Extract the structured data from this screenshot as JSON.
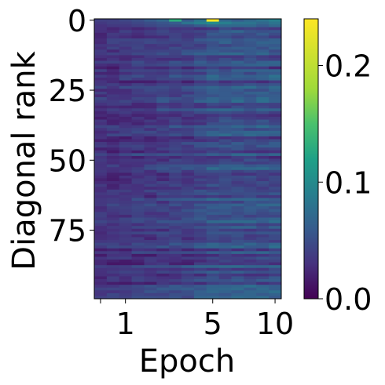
{
  "chart_data": {
    "type": "heatmap",
    "title": "",
    "xlabel": "Epoch",
    "ylabel": "Diagonal rank",
    "x_ticks": [
      {
        "value": 0,
        "label": ""
      },
      {
        "value": 1,
        "label": "1"
      },
      {
        "value": 5,
        "label": "5"
      },
      {
        "value": 10,
        "label": "10"
      }
    ],
    "y_ticks": [
      {
        "value": 0,
        "label": "0"
      },
      {
        "value": 25,
        "label": "25"
      },
      {
        "value": 50,
        "label": "50"
      },
      {
        "value": 75,
        "label": "75"
      }
    ],
    "y_range": [
      0,
      99
    ],
    "colorbar": {
      "range": [
        0,
        0.24
      ],
      "ticks": [
        {
          "value": 0,
          "label": "0.0"
        },
        {
          "value": 0.1,
          "label": "0.1"
        },
        {
          "value": 0.2,
          "label": "0.2"
        }
      ],
      "colormap": "viridis"
    },
    "columns": [
      {
        "epoch": 0.0,
        "mean": 0.03,
        "top": [
          0.04,
          0.035,
          0.03
        ]
      },
      {
        "epoch": 0.5,
        "mean": 0.03,
        "top": [
          0.04,
          0.04,
          0.035
        ]
      },
      {
        "epoch": 1.0,
        "mean": 0.032,
        "top": [
          0.045,
          0.04,
          0.035
        ]
      },
      {
        "epoch": 1.5,
        "mean": 0.035,
        "top": [
          0.05,
          0.045,
          0.04
        ]
      },
      {
        "epoch": 2.0,
        "mean": 0.035,
        "top": [
          0.06,
          0.05,
          0.045
        ]
      },
      {
        "epoch": 2.5,
        "mean": 0.038,
        "top": [
          0.07,
          0.055,
          0.05
        ]
      },
      {
        "epoch": 3.0,
        "mean": 0.04,
        "top": [
          0.13,
          0.06,
          0.05
        ]
      },
      {
        "epoch": 3.5,
        "mean": 0.04,
        "top": [
          0.06,
          0.08,
          0.05
        ]
      },
      {
        "epoch": 4.0,
        "mean": 0.045,
        "top": [
          0.08,
          0.09,
          0.06
        ]
      },
      {
        "epoch": 5.0,
        "mean": 0.05,
        "top": [
          0.24,
          0.1,
          0.07
        ]
      },
      {
        "epoch": 6.0,
        "mean": 0.05,
        "top": [
          0.07,
          0.09,
          0.07
        ]
      },
      {
        "epoch": 7.0,
        "mean": 0.05,
        "top": [
          0.06,
          0.08,
          0.07
        ]
      },
      {
        "epoch": 8.0,
        "mean": 0.05,
        "top": [
          0.07,
          0.08,
          0.07
        ]
      },
      {
        "epoch": 9.0,
        "mean": 0.05,
        "top": [
          0.08,
          0.07,
          0.06
        ]
      },
      {
        "epoch": 10.0,
        "mean": 0.05,
        "top": [
          0.09,
          0.08,
          0.07
        ]
      }
    ],
    "rows": 100,
    "grid": false,
    "legend": "none"
  }
}
